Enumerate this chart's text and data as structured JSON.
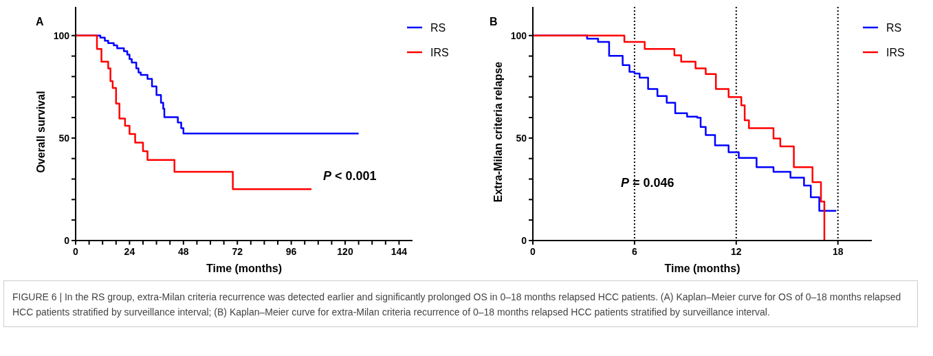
{
  "chart_data": [
    {
      "type": "step",
      "title": "A",
      "xlabel": "Time (months)",
      "ylabel": "Overall survival",
      "xlim": [
        0,
        150
      ],
      "ylim": [
        0,
        114
      ],
      "xticks": [
        0,
        {
          "value": 6,
          "label": null
        },
        {
          "value": 12,
          "label": null
        },
        {
          "value": 18,
          "label": null
        },
        24,
        {
          "value": 30,
          "label": null
        },
        {
          "value": 36,
          "label": null
        },
        {
          "value": 42,
          "label": null
        },
        48,
        {
          "value": 54,
          "label": null
        },
        {
          "value": 60,
          "label": null
        },
        {
          "value": 66,
          "label": null
        },
        72,
        {
          "value": 78,
          "label": null
        },
        {
          "value": 84,
          "label": null
        },
        {
          "value": 90,
          "label": null
        },
        96,
        {
          "value": 102,
          "label": null
        },
        {
          "value": 108,
          "label": null
        },
        {
          "value": 114,
          "label": null
        },
        120,
        {
          "value": 126,
          "label": null
        },
        {
          "value": 132,
          "label": null
        },
        {
          "value": 138,
          "label": null
        },
        144
      ],
      "yticks": [
        0,
        {
          "value": 10,
          "label": null
        },
        {
          "value": 20,
          "label": null
        },
        {
          "value": 30,
          "label": null
        },
        {
          "value": 40,
          "label": null
        },
        50,
        {
          "value": 60,
          "label": null
        },
        {
          "value": 70,
          "label": null
        },
        {
          "value": 80,
          "label": null
        },
        {
          "value": 90,
          "label": null
        },
        100
      ],
      "legend": "top right",
      "grid": false,
      "series": [
        {
          "name": "RS",
          "color": "#0000ff",
          "x": [
            0,
            11,
            13,
            14.5,
            17,
            18.5,
            21.5,
            23,
            24,
            25,
            27,
            28,
            29,
            32,
            34,
            36,
            38,
            39,
            39.5,
            45.5,
            47,
            48,
            126
          ],
          "values": [
            100,
            99,
            97.5,
            96.3,
            95.2,
            93.8,
            92.4,
            90.7,
            88.5,
            86.8,
            84,
            82,
            80.8,
            78.9,
            75.2,
            71,
            67.2,
            64.3,
            60.2,
            57.6,
            54.8,
            52.2,
            52.2
          ]
        },
        {
          "name": "IRS",
          "color": "#ff0000",
          "x": [
            0,
            9.5,
            11.5,
            14.5,
            15.5,
            16.5,
            18,
            19.5,
            22,
            24,
            26.5,
            30,
            32,
            44,
            70,
            105
          ],
          "values": [
            100,
            93.5,
            87.3,
            84,
            77.8,
            74.4,
            66.8,
            59.5,
            56,
            52,
            47.8,
            43.6,
            39.3,
            33.5,
            25.1,
            25.1
          ]
        }
      ],
      "annotations": [
        "P < 0.001",
        "FIGURE 6 | In the RS group, extra-Milan criteria recurrence was detected earlier and significantly prolonged OS in 0–18 months relapsed HCC patients. (A) Kaplan–Meier curve for OS of 0–18 months relapsed HCC patients stratified by surveillance interval; (B) Kaplan–Meier curve for extra-Milan criteria recurrence of 0–18 months relapsed HCC patients stratified by surveillance interval."
      ]
    },
    {
      "type": "step",
      "title": "B",
      "xlabel": "Time (months)",
      "ylabel": "Extra-Milan criteria relapse",
      "xlim": [
        0,
        20
      ],
      "ylim": [
        0,
        114
      ],
      "xticks": [
        0,
        6,
        12,
        18
      ],
      "yticks": [
        0,
        {
          "value": 10,
          "label": null
        },
        {
          "value": 20,
          "label": null
        },
        {
          "value": 30,
          "label": null
        },
        {
          "value": 40,
          "label": null
        },
        50,
        {
          "value": 60,
          "label": null
        },
        {
          "value": 70,
          "label": null
        },
        {
          "value": 80,
          "label": null
        },
        {
          "value": 90,
          "label": null
        },
        100
      ],
      "legend": "top right",
      "grid": false,
      "series": [
        {
          "name": "RS",
          "color": "#0000ff",
          "x": [
            0,
            3.2,
            3.85,
            4.5,
            5.3,
            5.7,
            6,
            6.3,
            6.8,
            7.35,
            7.9,
            8.4,
            9.1,
            9.7,
            9.9,
            10.2,
            10.75,
            11.55,
            12.15,
            13.2,
            14.2,
            15.2,
            16,
            16.4,
            16.9,
            17.9
          ],
          "values": [
            100,
            98.5,
            96.9,
            90.1,
            85.6,
            82.3,
            81.5,
            79.5,
            73.9,
            70.5,
            67.2,
            62.1,
            60.4,
            59.9,
            55.4,
            51.5,
            46.4,
            43.1,
            40.3,
            35.8,
            33.5,
            30.7,
            26.8,
            21.1,
            14.5,
            14.5
          ]
        },
        {
          "name": "IRS",
          "color": "#ff0000",
          "x": [
            0,
            5.4,
            6.6,
            8.35,
            8.75,
            9.6,
            10.2,
            10.8,
            11.55,
            12.3,
            12.5,
            12.75,
            14.2,
            14.6,
            15.4,
            16.5,
            17,
            17.2
          ],
          "values": [
            100,
            96.9,
            93.5,
            90.4,
            87.3,
            84,
            81.2,
            73.9,
            70,
            66,
            58.7,
            54.8,
            49.8,
            45.9,
            35.8,
            28.5,
            19,
            0
          ]
        }
      ],
      "ref_lines": [
        {
          "axis": "x",
          "value": 6,
          "line_style": "dotted"
        },
        {
          "axis": "x",
          "value": 12,
          "line_style": "dotted"
        },
        {
          "axis": "x",
          "value": 18,
          "line_style": "dotted"
        }
      ],
      "annotations": [
        "P = 0.046"
      ]
    }
  ]
}
